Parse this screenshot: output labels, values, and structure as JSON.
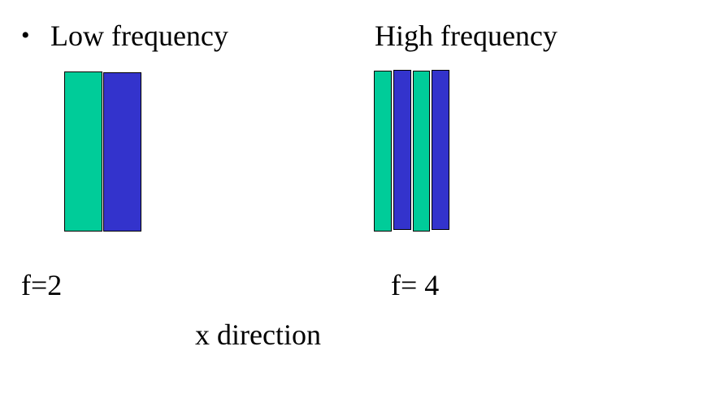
{
  "low": {
    "bullet": "•",
    "title": "Low frequency",
    "formula": "f=2",
    "bars": [
      {
        "color": "#00CC99"
      },
      {
        "color": "#3333CC"
      }
    ]
  },
  "high": {
    "title": "High frequency",
    "formula": "f= 4",
    "bars": [
      {
        "color": "#00CC99"
      },
      {
        "color": "#3333CC"
      },
      {
        "color": "#00CC99"
      },
      {
        "color": "#3333CC"
      }
    ]
  },
  "axis_label": "x direction"
}
